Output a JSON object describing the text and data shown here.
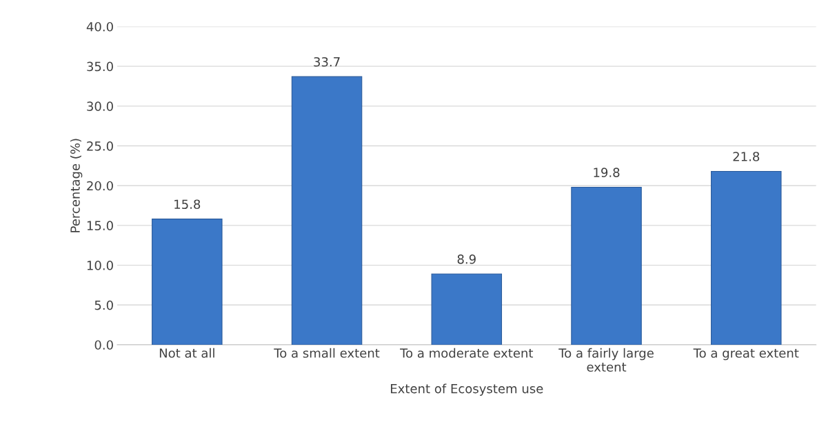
{
  "chart_data": {
    "type": "bar",
    "xlabel": "Extent of Ecosystem use",
    "ylabel": "Percentage (%)",
    "categories": [
      "Not at all",
      "To a small extent",
      "To a moderate extent",
      "To a fairly large extent",
      "To a great extent"
    ],
    "values": [
      15.8,
      33.7,
      8.9,
      19.8,
      21.8
    ],
    "color": "#3b78c8",
    "ylim": [
      0,
      40
    ],
    "yticks": [
      {
        "value": 0,
        "label": "0.0"
      },
      {
        "value": 5,
        "label": "5.0"
      },
      {
        "value": 10,
        "label": "10.0"
      },
      {
        "value": 15,
        "label": "15.0"
      },
      {
        "value": 20,
        "label": "20.0"
      },
      {
        "value": 25,
        "label": "25.0"
      },
      {
        "value": 30,
        "label": "30.0"
      },
      {
        "value": 35,
        "label": "35.0"
      },
      {
        "value": 40,
        "label": "40.0"
      }
    ],
    "grid": "y",
    "data_labels": true
  }
}
